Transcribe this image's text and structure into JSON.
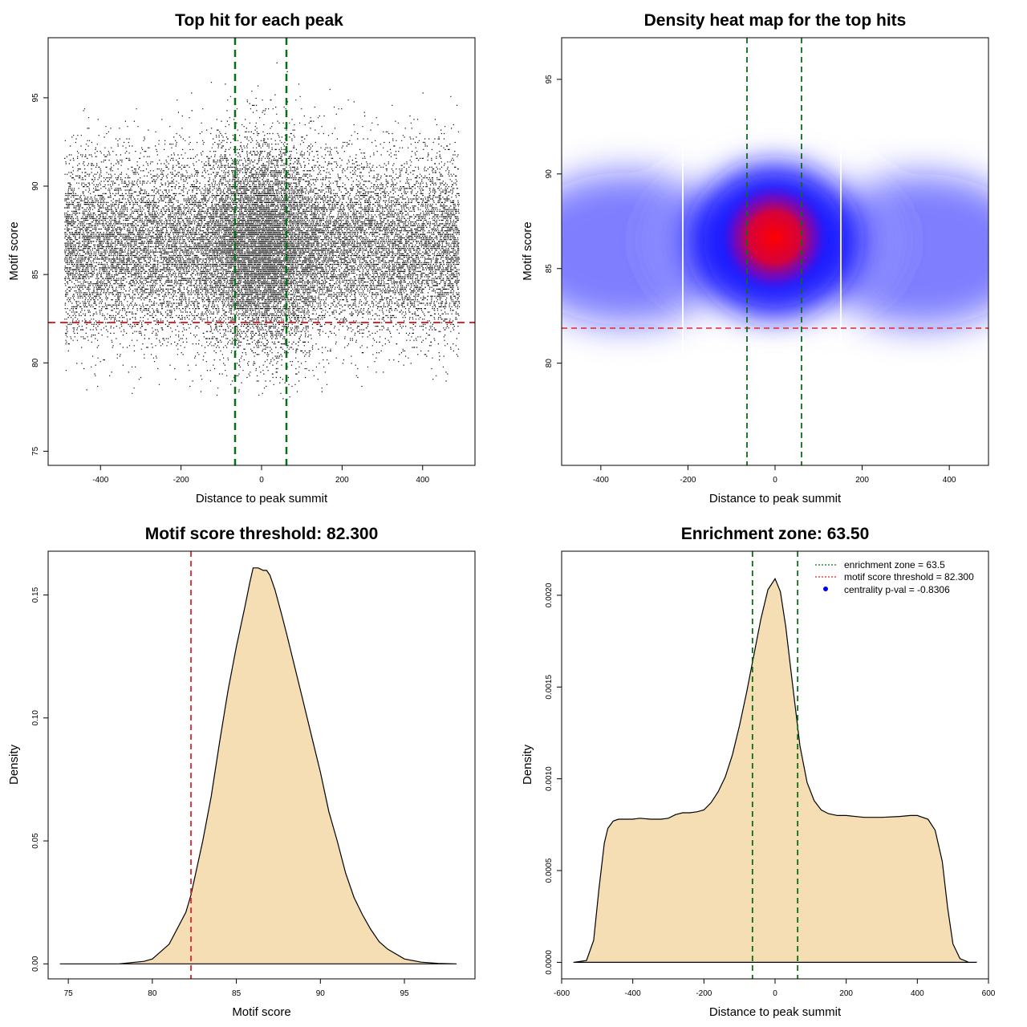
{
  "colors": {
    "threshold_line": "#e0262b",
    "zone_line": "#0b6e14",
    "density_fill": "#f5deb3",
    "heat_low": "#ffffff",
    "heat_mid": "#1a1aff",
    "heat_high": "#ff0000",
    "legend_dot": "#0000ff"
  },
  "chart_data": [
    {
      "id": "scatter",
      "type": "scatter",
      "title": "Top hit for each peak",
      "xlabel": "Distance to peak summit",
      "ylabel": "Motif score",
      "xlim": [
        -530,
        530
      ],
      "ylim": [
        74.2,
        98.4
      ],
      "xticks": [
        -400,
        -200,
        0,
        200,
        400
      ],
      "yticks": [
        75,
        80,
        85,
        90,
        95
      ],
      "point_x_range": [
        -490,
        490
      ],
      "score_mean": 86.6,
      "score_sd": 2.5,
      "n_points": 26000,
      "threshold_y": 82.3,
      "zone_x": [
        -63.5,
        63.5
      ]
    },
    {
      "id": "heatmap",
      "type": "heatmap",
      "title": "Density heat map for the top hits",
      "xlabel": "Distance to peak summit",
      "ylabel": "Motif score",
      "xlim": [
        -490,
        490
      ],
      "ylim": [
        74.6,
        97.2
      ],
      "xticks": [
        -400,
        -200,
        0,
        200,
        400
      ],
      "yticks": [
        80,
        85,
        90,
        95
      ],
      "hotspot": {
        "x": 0,
        "y": 87.2
      },
      "threshold_y": 82.3,
      "zone_x": [
        -63.5,
        63.5
      ],
      "bin_edges_x": [
        -210,
        155
      ]
    },
    {
      "id": "score_density",
      "type": "area",
      "title": "Motif score threshold: 82.300",
      "xlabel": "Motif score",
      "ylabel": "Density",
      "xlim": [
        73.8,
        99.2
      ],
      "ylim": [
        -0.0061,
        0.1678
      ],
      "xticks": [
        75,
        80,
        85,
        90,
        95
      ],
      "yticks": [
        0.0,
        0.05,
        0.1,
        0.15
      ],
      "ytick_labels": [
        "0.00",
        "0.05",
        "0.10",
        "0.15"
      ],
      "x": [
        74.5,
        78,
        79.5,
        80,
        81,
        82,
        82.3,
        83,
        83.5,
        84,
        84.5,
        85,
        85.5,
        85.8,
        86,
        86.3,
        86.6,
        86.8,
        87,
        87.3,
        87.7,
        88,
        88.5,
        89,
        89.5,
        90,
        90.5,
        91,
        91.5,
        92,
        92.5,
        93,
        93.5,
        94,
        95,
        96,
        97,
        98.1
      ],
      "y": [
        0,
        0,
        0.001,
        0.002,
        0.008,
        0.021,
        0.028,
        0.05,
        0.068,
        0.09,
        0.111,
        0.129,
        0.145,
        0.155,
        0.161,
        0.161,
        0.16,
        0.16,
        0.158,
        0.152,
        0.142,
        0.134,
        0.12,
        0.106,
        0.092,
        0.078,
        0.062,
        0.05,
        0.037,
        0.027,
        0.02,
        0.014,
        0.009,
        0.006,
        0.002,
        0.0007,
        0.0002,
        0
      ],
      "threshold_x": 82.3
    },
    {
      "id": "distance_density",
      "type": "area",
      "title": "Enrichment zone: 63.50",
      "xlabel": "Distance to peak summit",
      "ylabel": "Density",
      "xlim": [
        -600,
        600
      ],
      "ylim": [
        -9e-05,
        0.00224
      ],
      "xticks": [
        -600,
        -400,
        -200,
        0,
        200,
        400,
        600
      ],
      "yticks": [
        0,
        0.0005,
        0.001,
        0.0015,
        0.002
      ],
      "ytick_labels": [
        "0.0000",
        "0.0005",
        "0.0010",
        "0.0015",
        "0.0020"
      ],
      "x": [
        -565,
        -530,
        -510,
        -495,
        -480,
        -470,
        -455,
        -440,
        -420,
        -400,
        -380,
        -350,
        -320,
        -300,
        -280,
        -260,
        -240,
        -220,
        -200,
        -180,
        -160,
        -140,
        -120,
        -100,
        -80,
        -60,
        -40,
        -20,
        0,
        15,
        30,
        50,
        70,
        90,
        110,
        130,
        150,
        175,
        200,
        250,
        300,
        350,
        380,
        400,
        430,
        450,
        470,
        485,
        500,
        520,
        545,
        565
      ],
      "y": [
        0,
        1e-05,
        0.00012,
        0.0004,
        0.00065,
        0.00073,
        0.00077,
        0.00078,
        0.00078,
        0.00078,
        0.000785,
        0.00078,
        0.00078,
        0.000785,
        0.000805,
        0.000815,
        0.000815,
        0.00082,
        0.00083,
        0.00087,
        0.00093,
        0.00101,
        0.00113,
        0.00129,
        0.00147,
        0.00167,
        0.00187,
        0.00203,
        0.00209,
        0.00202,
        0.00183,
        0.0015,
        0.00118,
        0.00098,
        0.00088,
        0.00083,
        0.00081,
        0.0008,
        0.0008,
        0.00079,
        0.00079,
        0.000795,
        0.0008,
        0.0008,
        0.00078,
        0.00072,
        0.00055,
        0.0003,
        0.0001,
        2e-05,
        0,
        0
      ],
      "zone_x": [
        -63.5,
        63.5
      ],
      "legend": [
        {
          "label": "enrichment zone = 63.5",
          "kind": "dotted-line",
          "color": "#0b6e14"
        },
        {
          "label": "motif score threshold = 82.300",
          "kind": "dotted-line",
          "color": "#e0262b"
        },
        {
          "label": "centrality p-val = -0.8306",
          "kind": "dot",
          "color": "#0000ff"
        }
      ]
    }
  ]
}
